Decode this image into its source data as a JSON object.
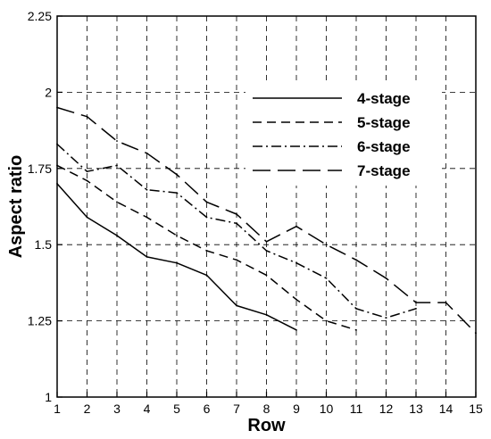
{
  "chart_data": {
    "type": "line",
    "title": "",
    "xlabel": "Row",
    "ylabel": "Aspect ratio",
    "xlim": [
      1,
      15
    ],
    "ylim": [
      1,
      2.25
    ],
    "x_ticks": [
      1,
      2,
      3,
      4,
      5,
      6,
      7,
      8,
      9,
      10,
      11,
      12,
      13,
      14,
      15
    ],
    "x_tick_labels": [
      "1",
      "2",
      "3",
      "4",
      "5",
      "6",
      "7",
      "8",
      "9",
      "10",
      "11",
      "12",
      "13",
      "14",
      "15"
    ],
    "y_ticks": [
      1,
      1.25,
      1.5,
      1.75,
      2,
      2.25
    ],
    "y_tick_labels": [
      "1",
      "1.25",
      "1.5",
      "1.75",
      "2",
      "2.25"
    ],
    "grid": true,
    "legend_position": "top-right",
    "series": [
      {
        "name": "4-stage",
        "dash": "solid",
        "x": [
          1,
          2,
          3,
          4,
          5,
          6,
          7,
          8,
          9
        ],
        "y": [
          1.7,
          1.59,
          1.53,
          1.46,
          1.44,
          1.4,
          1.3,
          1.27,
          1.22
        ]
      },
      {
        "name": "5-stage",
        "dash": "dashed",
        "x": [
          1,
          2,
          3,
          4,
          5,
          6,
          7,
          8,
          9,
          10,
          11
        ],
        "y": [
          1.76,
          1.71,
          1.64,
          1.59,
          1.53,
          1.48,
          1.45,
          1.4,
          1.32,
          1.25,
          1.22
        ]
      },
      {
        "name": "6-stage",
        "dash": "dashdot",
        "x": [
          1,
          2,
          3,
          4,
          5,
          6,
          7,
          8,
          9,
          10,
          11,
          12,
          13
        ],
        "y": [
          1.83,
          1.74,
          1.76,
          1.68,
          1.67,
          1.59,
          1.57,
          1.48,
          1.44,
          1.39,
          1.29,
          1.26,
          1.29
        ]
      },
      {
        "name": "7-stage",
        "dash": "longdash",
        "x": [
          1,
          2,
          3,
          4,
          5,
          6,
          7,
          8,
          9,
          10,
          11,
          12,
          13,
          14,
          15
        ],
        "y": [
          1.95,
          1.92,
          1.84,
          1.8,
          1.73,
          1.64,
          1.6,
          1.51,
          1.56,
          1.5,
          1.45,
          1.39,
          1.31,
          1.31,
          1.21
        ]
      }
    ]
  }
}
